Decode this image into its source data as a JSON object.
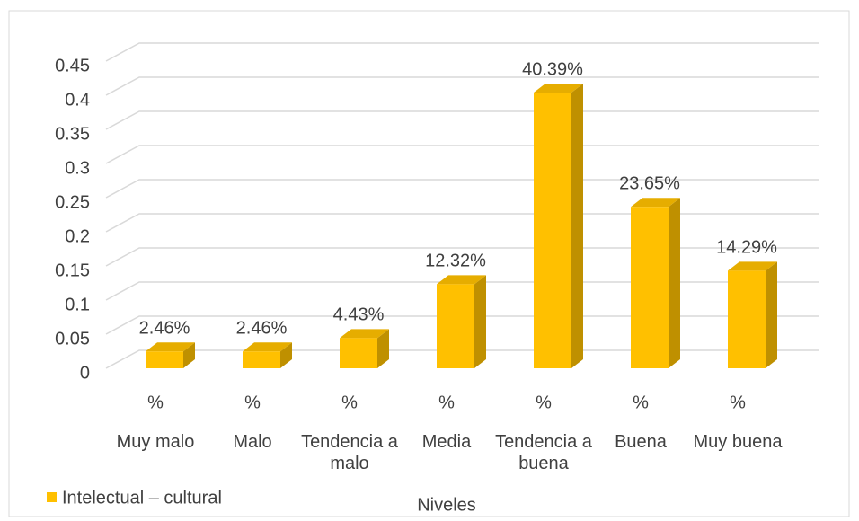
{
  "chart_data": {
    "type": "bar3d",
    "categories": [
      "Muy malo",
      "Malo",
      "Tendencia a malo",
      "Media",
      "Tendencia a buena",
      "Buena",
      "Muy buena"
    ],
    "sublabels": [
      "%",
      "%",
      "%",
      "%",
      "%",
      "%",
      "%"
    ],
    "series": [
      {
        "name": "Intelectual – cultural",
        "color": "#ffc000",
        "values": [
          0.0246,
          0.0246,
          0.0443,
          0.1232,
          0.4039,
          0.2365,
          0.1429
        ],
        "value_labels": [
          "2.46%",
          "2.46%",
          "4.43%",
          "12.32%",
          "40.39%",
          "23.65%",
          "14.29%"
        ]
      }
    ],
    "xlabel": "Niveles",
    "ylim": [
      0,
      0.45
    ],
    "yticks": [
      0,
      0.05,
      0.1,
      0.15,
      0.2,
      0.25,
      0.3,
      0.35,
      0.4,
      0.45
    ],
    "grid": true,
    "legend": "bottom-left"
  }
}
